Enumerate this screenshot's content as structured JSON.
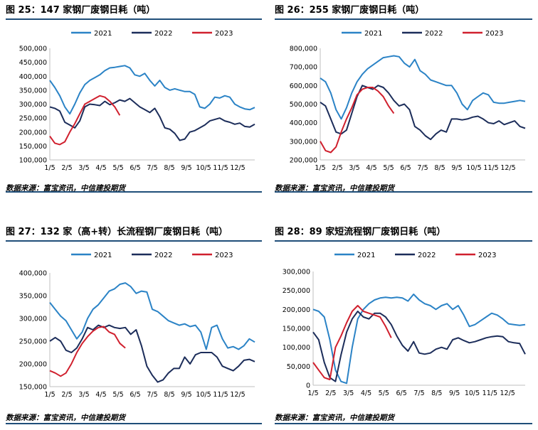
{
  "source_label": "数据来源：富宝资讯，中信建投期货",
  "colors": {
    "s2021": "#2b83c6",
    "s2022": "#1c2d5a",
    "s2023": "#d0202e",
    "axis": "#bfbfbf",
    "title_rule": "#1f4e79"
  },
  "chart_data": [
    {
      "type": "line",
      "title": "图 25：147 家钢厂废钢日耗（吨）",
      "x_labels": [
        "1/5",
        "2/5",
        "3/5",
        "4/5",
        "5/5",
        "6/5",
        "7/5",
        "8/5",
        "9/5",
        "10/5",
        "11/5",
        "12/5"
      ],
      "y_ticks": [
        "500,000",
        "450,000",
        "400,000",
        "350,000",
        "300,000",
        "250,000",
        "200,000",
        "150,000",
        "100,000"
      ],
      "ylim": [
        100000,
        500000
      ],
      "series": [
        {
          "name": "2021",
          "values": [
            385000,
            360000,
            330000,
            290000,
            265000,
            300000,
            340000,
            370000,
            385000,
            395000,
            405000,
            420000,
            430000,
            432000,
            435000,
            438000,
            430000,
            405000,
            400000,
            410000,
            385000,
            365000,
            385000,
            360000,
            350000,
            355000,
            350000,
            345000,
            345000,
            335000,
            290000,
            285000,
            300000,
            325000,
            322000,
            330000,
            325000,
            300000,
            290000,
            283000,
            280000,
            288000
          ]
        },
        {
          "name": "2022",
          "values": [
            290000,
            285000,
            275000,
            235000,
            225000,
            215000,
            240000,
            290000,
            300000,
            298000,
            295000,
            310000,
            298000,
            305000,
            315000,
            310000,
            320000,
            305000,
            290000,
            280000,
            270000,
            285000,
            255000,
            215000,
            210000,
            195000,
            170000,
            175000,
            200000,
            205000,
            215000,
            225000,
            240000,
            245000,
            250000,
            240000,
            235000,
            228000,
            232000,
            220000,
            218000,
            228000
          ]
        },
        {
          "name": "2023",
          "values": [
            185000,
            160000,
            155000,
            165000,
            200000,
            230000,
            265000,
            300000,
            310000,
            320000,
            330000,
            325000,
            310000,
            290000,
            260000
          ]
        }
      ]
    },
    {
      "type": "line",
      "title": "图 26：255 家钢厂废钢日耗（吨）",
      "x_labels": [
        "1/5",
        "2/5",
        "3/5",
        "4/5",
        "5/5",
        "6/5",
        "7/5",
        "8/5",
        "9/5",
        "10/5",
        "11/5",
        "12/5"
      ],
      "y_ticks": [
        "800,000",
        "700,000",
        "600,000",
        "500,000",
        "400,000",
        "300,000",
        "200,000"
      ],
      "ylim": [
        200000,
        800000
      ],
      "series": [
        {
          "name": "2021",
          "values": [
            640000,
            620000,
            560000,
            470000,
            420000,
            480000,
            560000,
            620000,
            660000,
            690000,
            710000,
            730000,
            750000,
            755000,
            760000,
            755000,
            720000,
            700000,
            740000,
            680000,
            660000,
            630000,
            620000,
            610000,
            600000,
            600000,
            560000,
            500000,
            470000,
            520000,
            540000,
            560000,
            550000,
            510000,
            505000,
            505000,
            510000,
            515000,
            520000,
            515000
          ]
        },
        {
          "name": "2022",
          "values": [
            510000,
            490000,
            420000,
            350000,
            340000,
            360000,
            450000,
            540000,
            600000,
            590000,
            580000,
            600000,
            590000,
            560000,
            520000,
            490000,
            500000,
            470000,
            380000,
            360000,
            330000,
            310000,
            340000,
            360000,
            350000,
            420000,
            420000,
            415000,
            420000,
            430000,
            435000,
            420000,
            400000,
            395000,
            410000,
            390000,
            400000,
            410000,
            380000,
            370000
          ]
        },
        {
          "name": "2023",
          "values": [
            300000,
            250000,
            240000,
            270000,
            350000,
            420000,
            480000,
            550000,
            580000,
            590000,
            590000,
            570000,
            540000,
            490000,
            450000
          ]
        }
      ]
    },
    {
      "type": "line",
      "title": "图 27：132 家（高+转）长流程钢厂废钢日耗（吨）",
      "x_labels": [
        "1/5",
        "2/5",
        "3/5",
        "4/5",
        "5/5",
        "6/5",
        "7/5",
        "8/5",
        "9/5",
        "10/5",
        "11/5",
        "12/5"
      ],
      "y_ticks": [
        "400,000",
        "350,000",
        "300,000",
        "250,000",
        "200,000",
        "150,000"
      ],
      "ylim": [
        150000,
        400000
      ],
      "series": [
        {
          "name": "2021",
          "values": [
            335000,
            320000,
            305000,
            295000,
            275000,
            255000,
            270000,
            300000,
            320000,
            330000,
            345000,
            360000,
            365000,
            375000,
            378000,
            370000,
            355000,
            360000,
            358000,
            320000,
            315000,
            305000,
            295000,
            290000,
            285000,
            288000,
            282000,
            285000,
            270000,
            232000,
            280000,
            285000,
            255000,
            235000,
            238000,
            232000,
            240000,
            255000,
            248000
          ]
        },
        {
          "name": "2022",
          "values": [
            250000,
            258000,
            250000,
            230000,
            225000,
            235000,
            255000,
            280000,
            275000,
            285000,
            280000,
            285000,
            280000,
            278000,
            280000,
            265000,
            275000,
            240000,
            195000,
            175000,
            160000,
            165000,
            180000,
            190000,
            190000,
            215000,
            200000,
            220000,
            225000,
            225000,
            225000,
            215000,
            195000,
            190000,
            185000,
            195000,
            208000,
            210000,
            205000
          ]
        },
        {
          "name": "2023",
          "values": [
            185000,
            180000,
            173000,
            180000,
            200000,
            225000,
            245000,
            260000,
            272000,
            280000,
            282000,
            270000,
            265000,
            245000,
            235000
          ]
        }
      ]
    },
    {
      "type": "line",
      "title": "图 28：89 家短流程钢厂废钢日耗（吨）",
      "x_labels": [
        "1/5",
        "2/5",
        "3/5",
        "4/5",
        "5/5",
        "6/5",
        "7/5",
        "8/5",
        "9/5",
        "10/5",
        "11/5",
        "12/5"
      ],
      "y_ticks": [
        "300,000",
        "250,000",
        "200,000",
        "150,000",
        "100,000",
        "50,000",
        "0"
      ],
      "ylim": [
        0,
        300000
      ],
      "series": [
        {
          "name": "2021",
          "values": [
            200000,
            195000,
            180000,
            120000,
            40000,
            10000,
            5000,
            100000,
            175000,
            200000,
            215000,
            225000,
            230000,
            232000,
            230000,
            232000,
            230000,
            222000,
            240000,
            225000,
            215000,
            210000,
            200000,
            210000,
            215000,
            200000,
            210000,
            185000,
            155000,
            160000,
            170000,
            180000,
            190000,
            185000,
            175000,
            162000,
            160000,
            158000,
            160000
          ]
        },
        {
          "name": "2022",
          "values": [
            140000,
            120000,
            60000,
            20000,
            10000,
            80000,
            140000,
            175000,
            195000,
            180000,
            175000,
            190000,
            190000,
            180000,
            160000,
            130000,
            105000,
            90000,
            115000,
            85000,
            82000,
            85000,
            95000,
            100000,
            95000,
            120000,
            125000,
            118000,
            112000,
            115000,
            120000,
            125000,
            128000,
            130000,
            128000,
            115000,
            112000,
            110000,
            82000
          ]
        },
        {
          "name": "2023",
          "values": [
            60000,
            40000,
            20000,
            15000,
            100000,
            130000,
            165000,
            195000,
            210000,
            195000,
            190000,
            185000,
            180000,
            155000,
            125000
          ]
        }
      ]
    }
  ]
}
